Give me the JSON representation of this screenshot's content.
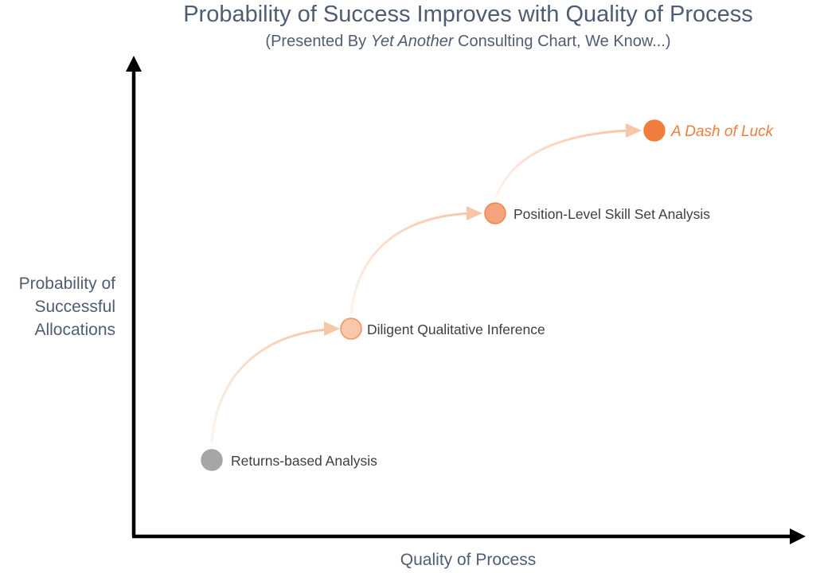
{
  "title": "Probability of Success Improves with Quality of Process",
  "subtitle": {
    "prefix": "(Presented By ",
    "emphasis": "Yet Another",
    "suffix": " Consulting Chart, We Know...)"
  },
  "y_axis_label": [
    "Probability of",
    "Successful",
    "Allocations"
  ],
  "x_axis_label": "Quality of Process",
  "colors": {
    "text": "#4f5d73",
    "axis": "#000000",
    "arrow": "#f6c6a8",
    "accent": "#ef7e3e"
  },
  "steps": [
    {
      "label": "Returns-based Analysis",
      "fill": "#a6a6a6",
      "stroke": "#a6a6a6"
    },
    {
      "label": "Diligent Qualitative Inference",
      "fill": "#f8c8aa",
      "stroke": "#ef9460"
    },
    {
      "label": "Position-Level Skill Set Analysis",
      "fill": "#f3a47c",
      "stroke": "#ee8550"
    },
    {
      "label": "A Dash of Luck",
      "fill": "#ef7e3e",
      "stroke": "#ef7e3e",
      "emphasis": true
    }
  ]
}
